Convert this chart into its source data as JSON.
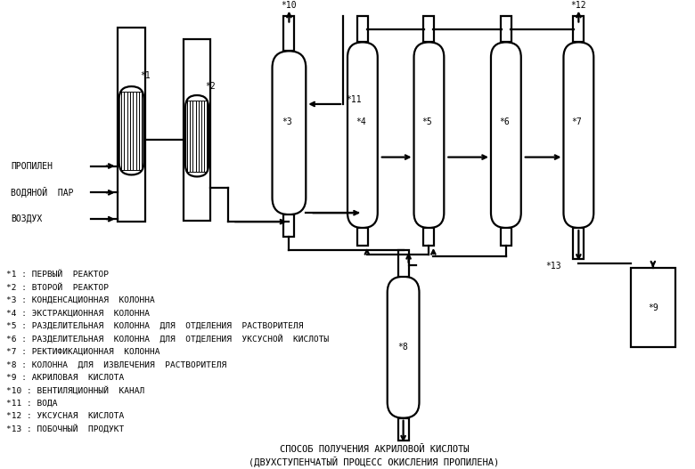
{
  "title_line1": "СПОСОБ ПОЛУЧЕНИЯ АКРИЛОВОЙ КИСЛОТЫ",
  "title_line2": "(ДВУХСТУПЕНЧАТЫЙ ПРОЦЕСС ОКИСЛЕНИЯ ПРОПИЛЕНА)",
  "bg_color": "#ffffff",
  "legend_items": [
    "*1 : ПЕРВЫЙ  РЕАКТОР",
    "*2 : ВТОРОЙ  РЕАКТОР",
    "*3 : КОНДЕНСАЦИОННАЯ  КОЛОННА",
    "*4 : ЭКСТРАКЦИОННАЯ  КОЛОННА",
    "*5 : РАЗДЕЛИТЕЛЬНАЯ  КОЛОННА  ДЛЯ  ОТДЕЛЕНИЯ  РАСТВОРИТЕЛЯ",
    "*6 : РАЗДЕЛИТЕЛЬНАЯ  КОЛОННА  ДЛЯ  ОТДЕЛЕНИЯ  УКСУСНОЙ  КИСЛОТЫ",
    "*7 : РЕКТИФИКАЦИОННАЯ  КОЛОННА",
    "*8 : КОЛОННА  ДЛЯ  ИЗВЛЕЧЕНИЯ  РАСТВОРИТЕЛЯ",
    "*9 : АКРИЛОВАЯ  КИСЛОТА",
    "*10 : ВЕНТИЛЯЦИОННЫЙ  КАНАЛ",
    "*11 : ВОДА",
    "*12 : УКСУСНАЯ  КИСЛОТА",
    "*13 : ПОБОЧНЫЙ  ПРОДУКТ"
  ],
  "lw": 1.6,
  "font_size": 7.0
}
